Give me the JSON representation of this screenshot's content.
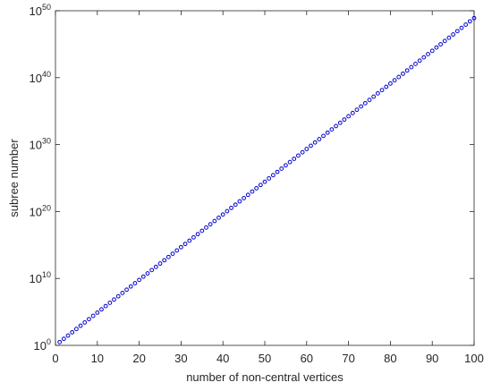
{
  "chart_data": {
    "type": "scatter",
    "xlabel": "number of non-central vertices",
    "ylabel": "subree number",
    "log_y": true,
    "grid": false,
    "color": "#0000cc",
    "x": [
      1,
      2,
      3,
      4,
      5,
      6,
      7,
      8,
      9,
      10,
      11,
      12,
      13,
      14,
      15,
      16,
      17,
      18,
      19,
      20,
      21,
      22,
      23,
      24,
      25,
      26,
      27,
      28,
      29,
      30,
      31,
      32,
      33,
      34,
      35,
      36,
      37,
      38,
      39,
      40,
      41,
      42,
      43,
      44,
      45,
      46,
      47,
      48,
      49,
      50,
      51,
      52,
      53,
      54,
      55,
      56,
      57,
      58,
      59,
      60,
      61,
      62,
      63,
      64,
      65,
      66,
      67,
      68,
      69,
      70,
      71,
      72,
      73,
      74,
      75,
      76,
      77,
      78,
      79,
      80,
      81,
      82,
      83,
      84,
      85,
      86,
      87,
      88,
      89,
      90,
      91,
      92,
      93,
      94,
      95,
      96,
      97,
      98,
      99,
      100
    ],
    "values": [
      3.08,
      9.5,
      29.3,
      90.0,
      279.0,
      860.0,
      2650.0,
      8200.0,
      25200.0,
      78000.0,
      239000.0,
      740000.0,
      2280000.0,
      7000000.0,
      21600000.0,
      67000000.0,
      206000000.0,
      630000000.0,
      1950000000.0,
      6000000000.0,
      18600000000.0,
      57000000000.0,
      177000000000.0,
      540000000000.0,
      1680000000000.0,
      5200000000000.0,
      16000000000000.0,
      49000000000000.0,
      152000000000000.0,
      470000000000000.0,
      1440000000000000.0,
      4400000000000000.0,
      1.37e+16,
      4.2e+16,
      1.3e+17,
      4e+17,
      1.24e+18,
      3.8e+18,
      1.18e+19,
      3.6e+19,
      1.12e+20,
      3.45e+20,
      1.06e+21,
      3.3e+21,
      1.01e+22,
      3.1e+22,
      9.6e+22,
      2.96e+23,
      9.1e+23,
      2.8e+24,
      8.7e+24,
      2.68e+25,
      8.3e+25,
      2.55e+26,
      7.9e+26,
      2.42e+27,
      7.5e+27,
      2.3e+28,
      7.1e+28,
      2.19e+29,
      6.7e+29,
      2.08e+30,
      6.4e+30,
      1.98e+31,
      6.1e+31,
      1.88e+32,
      5.8e+32,
      1.79e+33,
      5.5e+33,
      1.7e+34,
      5.2e+34,
      1.61e+35,
      5e+35,
      1.53e+36,
      4.7e+36,
      1.46e+37,
      4.5e+37,
      1.39e+38,
      4.3e+38,
      1.32e+39,
      4.1e+39,
      1.25e+40,
      3.9e+40,
      1.19e+41,
      3.7e+41,
      1.13e+42,
      3.5e+42,
      1.08e+43,
      3.3e+43,
      1.02e+44,
      3.2e+44,
      9.7e+44,
      3e+45,
      9.2e+45,
      2.85e+46,
      8.8e+46,
      2.71e+47,
      8.4e+47,
      2.58e+48,
      7.9e+48
    ],
    "xlim": [
      0,
      100
    ],
    "xticks": [
      0,
      10,
      20,
      30,
      40,
      50,
      60,
      70,
      80,
      90,
      100
    ],
    "ylim": [
      1,
      1e+50
    ],
    "yticks": [
      {
        "value": 1,
        "label": "10^0"
      },
      {
        "value": 10000000000.0,
        "label": "10^10"
      },
      {
        "value": 1e+20,
        "label": "10^20"
      },
      {
        "value": 1e+30,
        "label": "10^30"
      },
      {
        "value": 1e+40,
        "label": "10^40"
      },
      {
        "value": 1e+50,
        "label": "10^50"
      }
    ]
  }
}
